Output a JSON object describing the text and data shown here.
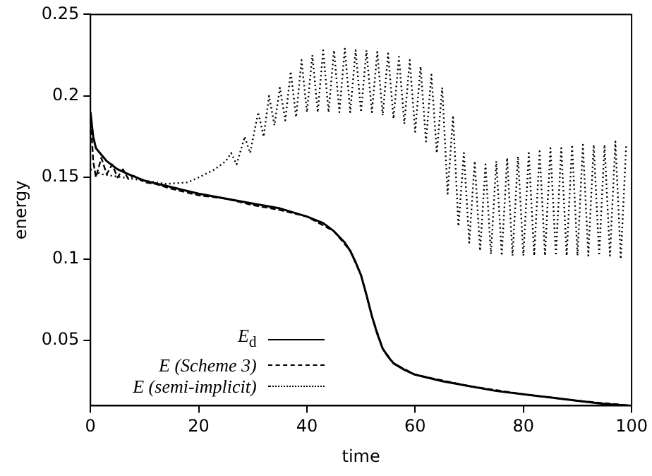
{
  "chart_data": {
    "type": "line",
    "xlabel": "time",
    "ylabel": "energy",
    "xlim": [
      0,
      100
    ],
    "ylim": [
      0.01,
      0.25
    ],
    "xticks": [
      0,
      20,
      40,
      60,
      80,
      100
    ],
    "yticks": [
      0.05,
      0.1,
      0.15,
      0.2,
      0.25
    ],
    "grid": false,
    "legend": "bottom left",
    "marker": "none",
    "series": [
      {
        "name": "E$_{d}$",
        "color": "#000000",
        "line_style": "solid",
        "x": [
          0,
          0.5,
          1,
          2,
          3,
          5,
          7,
          10,
          15,
          20,
          25,
          30,
          35,
          40,
          43,
          45,
          47,
          48,
          49,
          50,
          51,
          52,
          53,
          54,
          55,
          56,
          58,
          60,
          65,
          70,
          75,
          80,
          85,
          90,
          95,
          100
        ],
        "values": [
          0.19,
          0.175,
          0.168,
          0.164,
          0.16,
          0.155,
          0.152,
          0.148,
          0.144,
          0.14,
          0.137,
          0.134,
          0.131,
          0.126,
          0.122,
          0.117,
          0.11,
          0.105,
          0.098,
          0.09,
          0.078,
          0.065,
          0.054,
          0.045,
          0.04,
          0.036,
          0.032,
          0.029,
          0.025,
          0.022,
          0.019,
          0.017,
          0.015,
          0.013,
          0.011,
          0.01
        ]
      },
      {
        "name": "E  (Scheme 3)",
        "color": "#000000",
        "line_style": "dashed",
        "x": [
          0,
          0.5,
          1,
          2,
          3,
          4,
          5,
          6,
          7,
          8,
          10,
          12,
          15,
          20,
          25,
          30,
          35,
          40,
          45,
          48,
          50,
          52,
          54,
          56,
          60,
          70,
          80,
          90,
          100
        ],
        "values": [
          0.19,
          0.16,
          0.15,
          0.162,
          0.152,
          0.158,
          0.15,
          0.155,
          0.149,
          0.151,
          0.147,
          0.146,
          0.143,
          0.139,
          0.137,
          0.133,
          0.13,
          0.126,
          0.117,
          0.105,
          0.09,
          0.065,
          0.045,
          0.036,
          0.029,
          0.022,
          0.017,
          0.013,
          0.01
        ]
      },
      {
        "name": "E  (semi-implicit)",
        "color": "#000000",
        "line_style": "dotted",
        "x": [
          0,
          2,
          4,
          6,
          8,
          10,
          14,
          18,
          20,
          23,
          25,
          26,
          27,
          28.5,
          29.5,
          31,
          32,
          33,
          34,
          35,
          36,
          37,
          38,
          39,
          40,
          41,
          42,
          43,
          44,
          45,
          46,
          47,
          48,
          49,
          50,
          51,
          52,
          53,
          54,
          55,
          56,
          57,
          58,
          59,
          60,
          61,
          62,
          63,
          64,
          65,
          66,
          67,
          68,
          69,
          70,
          71,
          72,
          73,
          74,
          75,
          76,
          77,
          78,
          79,
          80,
          81,
          82,
          83,
          84,
          85,
          86,
          87,
          88,
          89,
          90,
          91,
          92,
          93,
          94,
          95,
          96,
          97,
          98,
          99
        ],
        "values": [
          0.155,
          0.152,
          0.151,
          0.15,
          0.149,
          0.148,
          0.146,
          0.147,
          0.15,
          0.155,
          0.16,
          0.165,
          0.158,
          0.175,
          0.165,
          0.19,
          0.175,
          0.2,
          0.182,
          0.205,
          0.185,
          0.215,
          0.187,
          0.222,
          0.19,
          0.225,
          0.19,
          0.228,
          0.19,
          0.228,
          0.19,
          0.229,
          0.19,
          0.228,
          0.19,
          0.228,
          0.19,
          0.227,
          0.188,
          0.226,
          0.186,
          0.224,
          0.183,
          0.222,
          0.178,
          0.218,
          0.172,
          0.213,
          0.165,
          0.205,
          0.14,
          0.188,
          0.12,
          0.165,
          0.11,
          0.16,
          0.105,
          0.158,
          0.103,
          0.16,
          0.102,
          0.162,
          0.102,
          0.163,
          0.102,
          0.165,
          0.102,
          0.166,
          0.102,
          0.168,
          0.102,
          0.168,
          0.102,
          0.17,
          0.102,
          0.17,
          0.102,
          0.17,
          0.102,
          0.17,
          0.102,
          0.172,
          0.1,
          0.17
        ]
      }
    ]
  }
}
